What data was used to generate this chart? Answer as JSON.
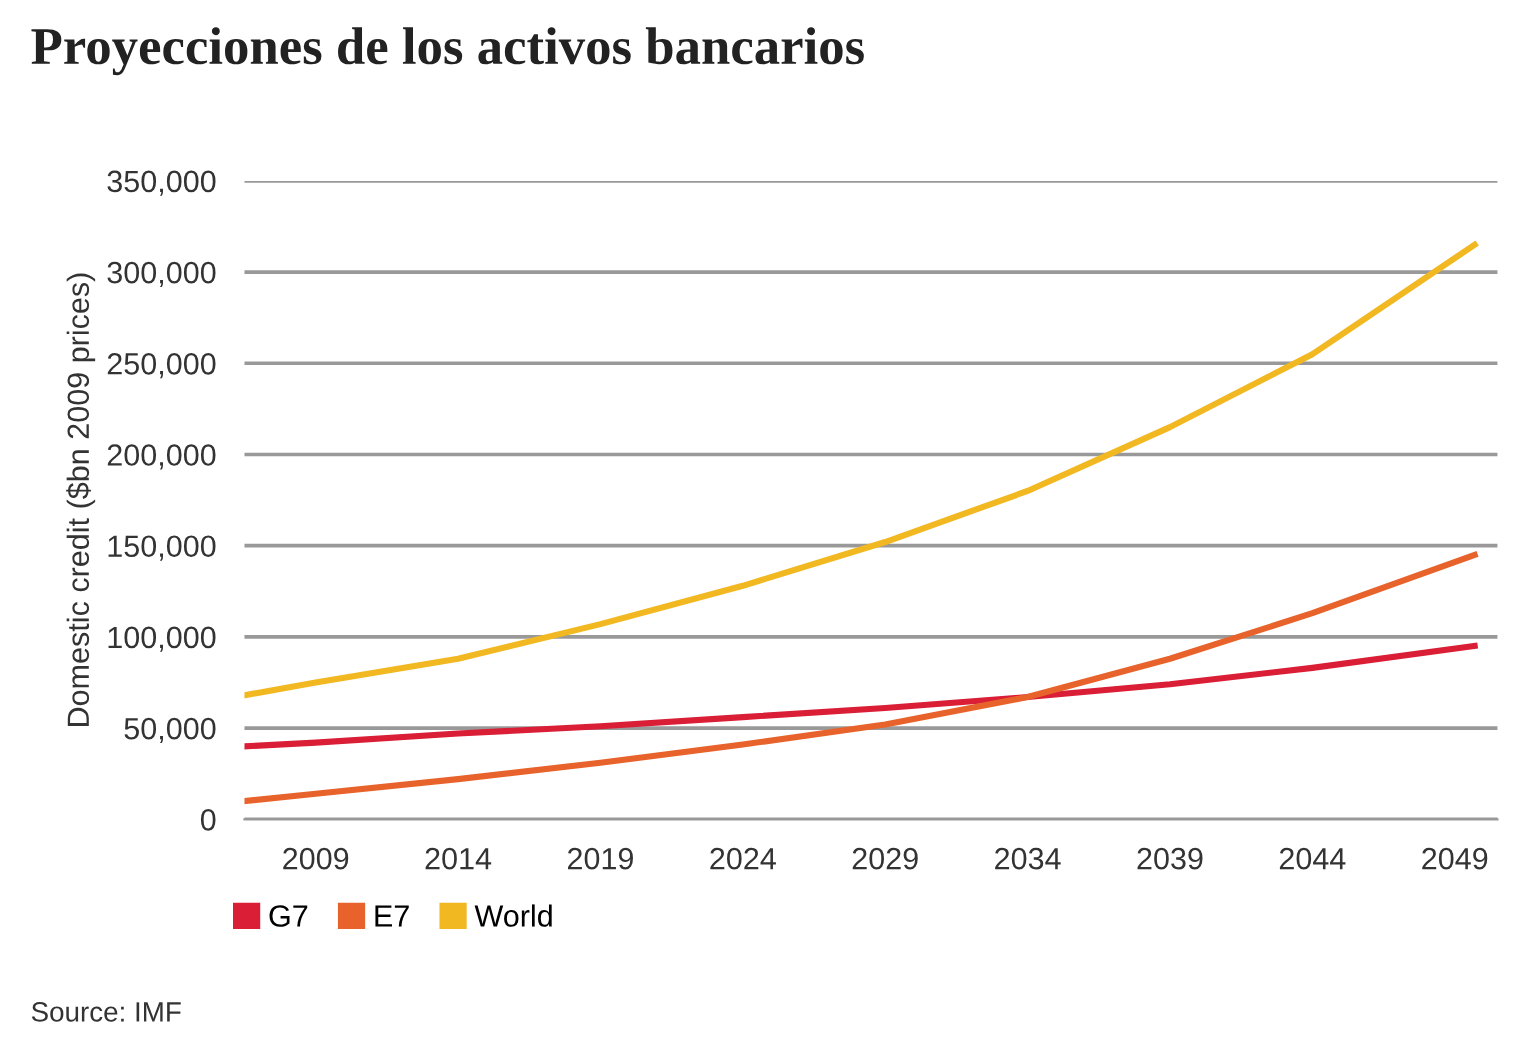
{
  "chart_data": {
    "type": "line",
    "title": "Proyecciones de los activos bancarios",
    "ylabel": "Domestic credit ($bn 2009 prices)",
    "annotations": [
      "Source: IMF"
    ],
    "x": [
      2006.5,
      2009,
      2014,
      2019,
      2024,
      2029,
      2034,
      2039,
      2044,
      2049.7
    ],
    "series": [
      {
        "name": "G7",
        "color": "#d91e36",
        "values": [
          40000,
          42000,
          47000,
          51000,
          56000,
          61000,
          67000,
          74000,
          83000,
          95000
        ]
      },
      {
        "name": "E7",
        "color": "#e8632b",
        "values": [
          10000,
          14000,
          22000,
          31000,
          41000,
          52000,
          67000,
          88000,
          113000,
          145000
        ]
      },
      {
        "name": "World",
        "color": "#f2b821",
        "values": [
          68000,
          75000,
          88000,
          107000,
          128000,
          152000,
          180000,
          215000,
          255000,
          315000
        ]
      }
    ],
    "xlim": [
      2006.5,
      2050.5
    ],
    "xticks": [
      2009,
      2014,
      2019,
      2024,
      2029,
      2034,
      2039,
      2044,
      2049
    ],
    "ylim": [
      0,
      350000
    ],
    "yticks": [
      0,
      {
        "value": 50000,
        "label": "50,000"
      },
      {
        "value": 100000,
        "label": "100,000"
      },
      {
        "value": 150000,
        "label": "150,000"
      },
      {
        "value": 200000,
        "label": "200,000"
      },
      {
        "value": 250000,
        "label": "250,000"
      },
      {
        "value": 300000,
        "label": "300,000"
      },
      {
        "value": 350000,
        "label": "350,000"
      }
    ],
    "grid": "y",
    "legend": "bottom left",
    "marker": "none",
    "line_style": "solid"
  }
}
